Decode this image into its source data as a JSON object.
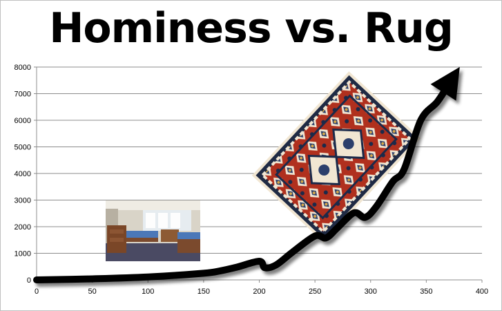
{
  "chart_data": {
    "type": "line",
    "title": "Hominess vs. Rug",
    "xlabel": "",
    "ylabel": "",
    "xlim": [
      0,
      400
    ],
    "ylim": [
      0,
      8000
    ],
    "x_ticks": [
      0,
      50,
      100,
      150,
      200,
      250,
      300,
      350,
      400
    ],
    "y_ticks": [
      0,
      1000,
      2000,
      3000,
      4000,
      5000,
      6000,
      7000,
      8000
    ],
    "grid": true,
    "legend": "none",
    "series": [
      {
        "x": [
          0,
          50,
          100,
          150,
          165,
          180,
          200,
          205,
          215,
          230,
          250,
          260,
          270,
          285,
          295,
          305,
          320,
          330,
          345,
          360,
          372
        ],
        "y": [
          0,
          40,
          110,
          250,
          340,
          480,
          700,
          460,
          560,
          1050,
          1650,
          1580,
          1950,
          2520,
          2350,
          2750,
          3700,
          4150,
          6000,
          6700,
          7480
        ],
        "color": "#000000",
        "arrow_end": true
      }
    ],
    "images": [
      {
        "name": "dorm-room-photo"
      },
      {
        "name": "persian-rug-image"
      }
    ]
  }
}
